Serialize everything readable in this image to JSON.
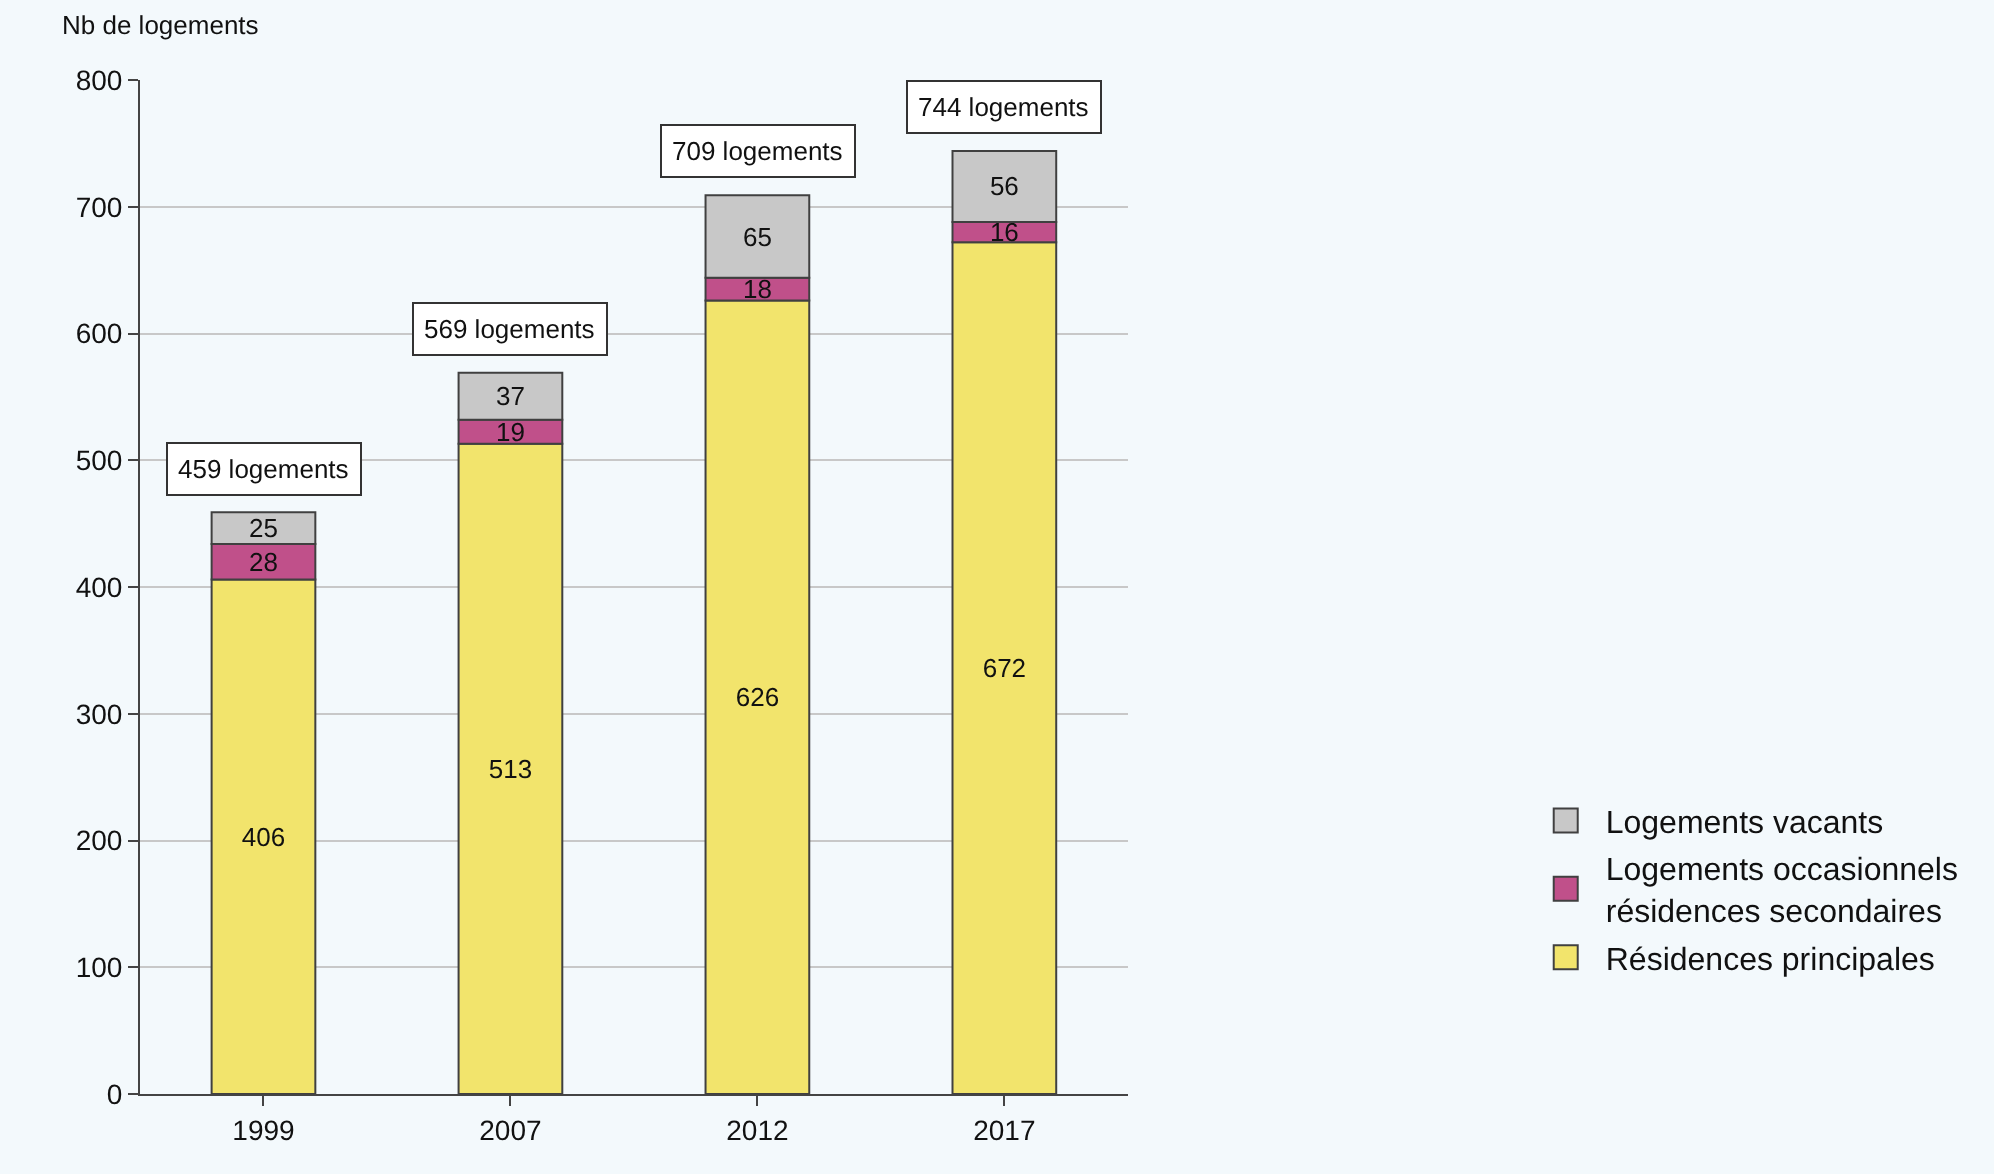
{
  "chart_data": {
    "type": "bar",
    "stacked": true,
    "ylabel": "Nb de logements",
    "categories": [
      "1999",
      "2007",
      "2012",
      "2017"
    ],
    "series": [
      {
        "name": "Résidences principales",
        "color": "#f2e46c",
        "values": [
          406,
          513,
          626,
          672
        ]
      },
      {
        "name": "Logements occasionnels\nrésidences secondaires",
        "color": "#c0508a",
        "values": [
          28,
          19,
          18,
          16
        ]
      },
      {
        "name": "Logements vacants",
        "color": "#c8c8c8",
        "values": [
          25,
          37,
          65,
          56
        ]
      }
    ],
    "totals": [
      "459 logements",
      "569 logements",
      "709 logements",
      "744 logements"
    ],
    "ylim": [
      0,
      800
    ],
    "yticks": [
      0,
      100,
      200,
      300,
      400,
      500,
      600,
      700,
      800
    ],
    "grid": "y",
    "legend": "right",
    "data_labels": true
  }
}
